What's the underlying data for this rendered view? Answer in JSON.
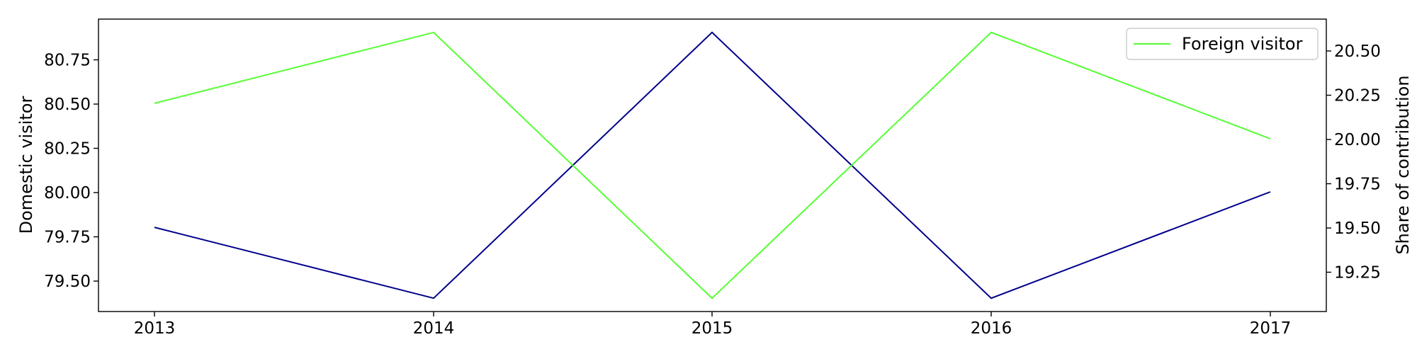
{
  "chart_data": {
    "type": "line",
    "x": [
      "2013",
      "2014",
      "2015",
      "2016",
      "2017"
    ],
    "series": [
      {
        "name": "",
        "axis": "left",
        "color": "#00008b",
        "values": [
          79.8,
          79.4,
          80.9,
          79.4,
          80.0
        ]
      },
      {
        "name": "Foreign visitor",
        "axis": "right",
        "color": "#55ff33",
        "values": [
          20.2,
          20.6,
          19.1,
          20.6,
          20.0
        ]
      }
    ],
    "left_axis": {
      "label": "Domestic visitor",
      "range": [
        79.325,
        80.975
      ],
      "ticks": [
        "79.50",
        "79.75",
        "80.00",
        "80.25",
        "80.50",
        "80.75"
      ]
    },
    "right_axis": {
      "label": "Share of contribution",
      "range": [
        19.025,
        20.675
      ],
      "ticks": [
        "19.25",
        "19.50",
        "19.75",
        "20.00",
        "20.25",
        "20.50"
      ]
    },
    "grid": false,
    "legend_position": "top-right"
  }
}
